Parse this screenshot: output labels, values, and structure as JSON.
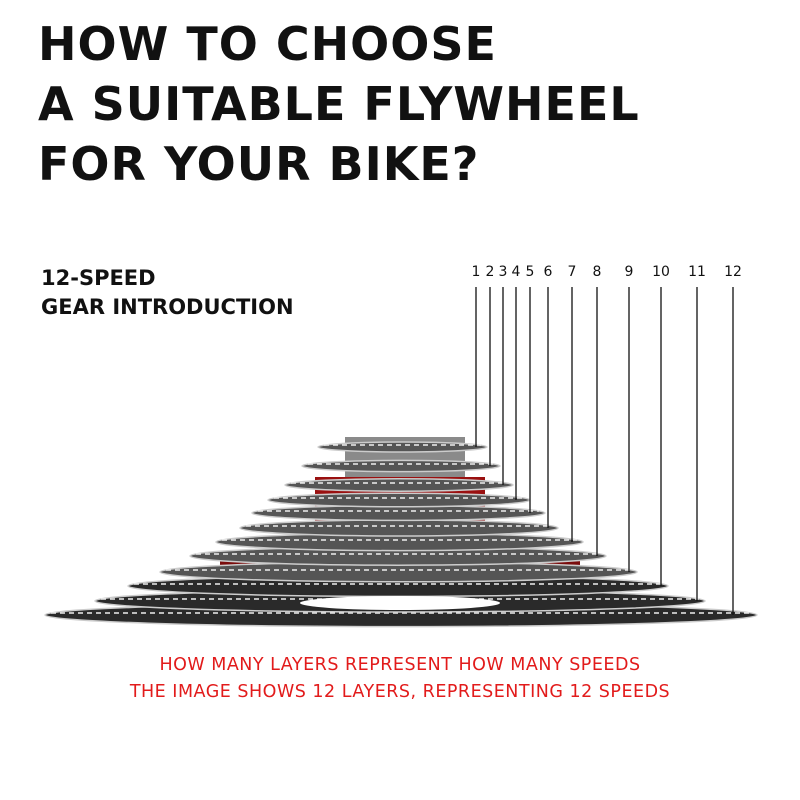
{
  "title": [
    "HOW TO CHOOSE",
    "A SUITABLE FLYWHEEL",
    "FOR YOUR BIKE?"
  ],
  "subtitle": [
    "12-SPEED",
    "GEAR INTRODUCTION"
  ],
  "gear_labels": [
    "1",
    "2",
    "3",
    "4",
    "5",
    "6",
    "7",
    "8",
    "9",
    "10",
    "11",
    "12"
  ],
  "caption": [
    "HOW MANY LAYERS REPRESENT HOW MANY SPEEDS",
    "THE IMAGE SHOWS 12 LAYERS, REPRESENTING 12 SPEEDS"
  ],
  "colors": {
    "text": "#111111",
    "caption": "#e21b1b",
    "spacer": "#9a1010",
    "gear": "#6a6a6a"
  }
}
